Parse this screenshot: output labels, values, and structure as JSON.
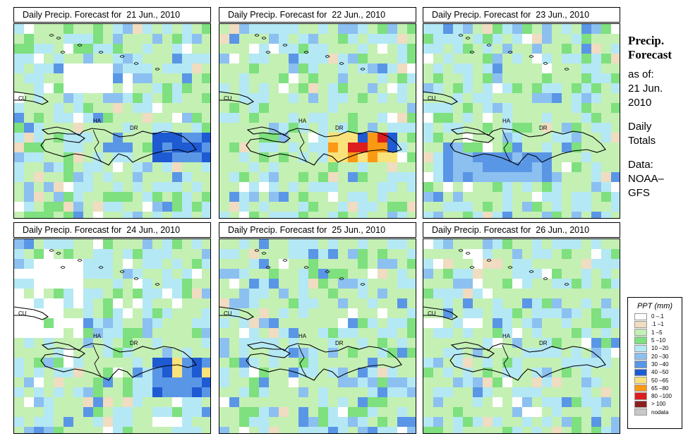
{
  "panels": [
    {
      "title": "Daily Precip. Forecast for  21 Jun., 2010",
      "seed": 11,
      "hot": "blue-south"
    },
    {
      "title": "Daily Precip. Forecast for  22 Jun., 2010",
      "seed": 23,
      "hot": "orange-south"
    },
    {
      "title": "Daily Precip. Forecast for  23 Jun., 2010",
      "seed": 37,
      "hot": "blue-mid"
    },
    {
      "title": "Daily Precip. Forecast for  24 Jun., 2010",
      "seed": 41,
      "hot": "yellow-east"
    },
    {
      "title": "Daily Precip. Forecast for  25 Jun., 2010",
      "seed": 53,
      "hot": "blue-mix"
    },
    {
      "title": "Daily Precip. Forecast for  26 Jun., 2010",
      "seed": 67,
      "hot": "green-mix"
    }
  ],
  "map_labels": {
    "cu": "CU",
    "ha": "HA",
    "dr": "DR"
  },
  "side": {
    "heading_1": "Precip.",
    "heading_2": "Forecast",
    "as_of": "as of:",
    "date_1": "21 Jun.",
    "date_2": "2010",
    "totals_1": "Daily",
    "totals_2": "Totals",
    "data_1": "Data:",
    "data_2": "NOAA–",
    "data_3": "GFS"
  },
  "legend": {
    "title": "PPT (mm)",
    "items": [
      {
        "label": "0 –.1",
        "color": "#ffffff"
      },
      {
        "label": ".1 –1",
        "color": "#f0dcc0"
      },
      {
        "label": "1 –5",
        "color": "#c4f0b4"
      },
      {
        "label": "5 –10",
        "color": "#7ee07e"
      },
      {
        "label": "10 –20",
        "color": "#b4e8f4"
      },
      {
        "label": "20 –30",
        "color": "#8cc0f0"
      },
      {
        "label": "30 –40",
        "color": "#5a96e6"
      },
      {
        "label": "40 –50",
        "color": "#1e5ad2"
      },
      {
        "label": "50 –65",
        "color": "#fae27a"
      },
      {
        "label": "65 –80",
        "color": "#fa9a14"
      },
      {
        "label": "80 –100",
        "color": "#dc1e1e"
      },
      {
        "label": "> 100",
        "color": "#8c1e1e"
      },
      {
        "label": "nodata",
        "color": "#c8c8c8"
      }
    ]
  }
}
